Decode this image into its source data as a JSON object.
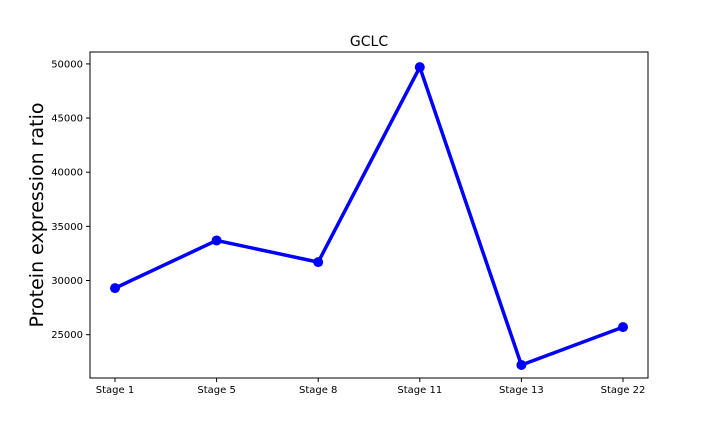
{
  "chart_data": {
    "type": "line",
    "title": "GCLC",
    "xlabel": "",
    "ylabel": "Protein expression ratio",
    "categories": [
      "Stage 1",
      "Stage 5",
      "Stage 8",
      "Stage 11",
      "Stage 13",
      "Stage 22"
    ],
    "series": [
      {
        "values": [
          29300,
          33700,
          31700,
          49700,
          22200,
          25700
        ],
        "color": "#0000ff",
        "marker": "circle"
      }
    ],
    "ylim": [
      21000,
      51100
    ],
    "yticks": [
      25000,
      30000,
      35000,
      40000,
      45000,
      50000
    ],
    "grid": false,
    "legend": false
  }
}
